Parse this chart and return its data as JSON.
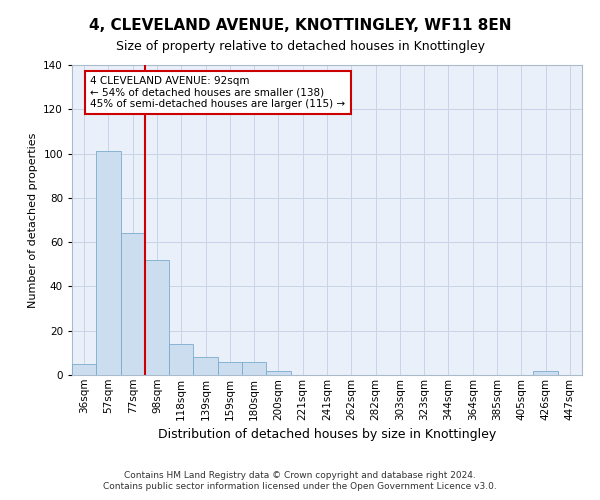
{
  "title": "4, CLEVELAND AVENUE, KNOTTINGLEY, WF11 8EN",
  "subtitle": "Size of property relative to detached houses in Knottingley",
  "xlabel": "Distribution of detached houses by size in Knottingley",
  "ylabel": "Number of detached properties",
  "categories": [
    "36sqm",
    "57sqm",
    "77sqm",
    "98sqm",
    "118sqm",
    "139sqm",
    "159sqm",
    "180sqm",
    "200sqm",
    "221sqm",
    "241sqm",
    "262sqm",
    "282sqm",
    "303sqm",
    "323sqm",
    "344sqm",
    "364sqm",
    "385sqm",
    "405sqm",
    "426sqm",
    "447sqm"
  ],
  "values": [
    5,
    101,
    64,
    52,
    14,
    8,
    6,
    6,
    2,
    0,
    0,
    0,
    0,
    0,
    0,
    0,
    0,
    0,
    0,
    2,
    0
  ],
  "bar_color": "#ccddf0",
  "bar_edge_color": "#7aabcc",
  "grid_color": "#c8d4e8",
  "background_color": "#eaf0fa",
  "property_line_x": 3.0,
  "property_line_color": "#cc0000",
  "annotation_text": "4 CLEVELAND AVENUE: 92sqm\n← 54% of detached houses are smaller (138)\n45% of semi-detached houses are larger (115) →",
  "annotation_box_color": "#ffffff",
  "annotation_box_edge": "#cc0000",
  "ylim": [
    0,
    140
  ],
  "yticks": [
    0,
    20,
    40,
    60,
    80,
    100,
    120,
    140
  ],
  "footer1": "Contains HM Land Registry data © Crown copyright and database right 2024.",
  "footer2": "Contains public sector information licensed under the Open Government Licence v3.0.",
  "title_fontsize": 11,
  "subtitle_fontsize": 9,
  "ylabel_fontsize": 8,
  "xlabel_fontsize": 9,
  "tick_fontsize": 7.5,
  "footer_fontsize": 6.5
}
